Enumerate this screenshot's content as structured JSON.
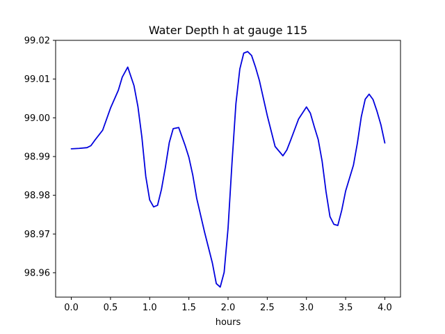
{
  "chart_data": {
    "type": "line",
    "title": "Water Depth h at gauge 115",
    "xlabel": "hours",
    "ylabel": "",
    "xlim": [
      -0.2,
      4.2
    ],
    "ylim": [
      98.9537,
      99.02
    ],
    "grid": false,
    "x_ticks": [
      0.0,
      0.5,
      1.0,
      1.5,
      2.0,
      2.5,
      3.0,
      3.5,
      4.0
    ],
    "x_tick_labels": [
      "0.0",
      "0.5",
      "1.0",
      "1.5",
      "2.0",
      "2.5",
      "3.0",
      "3.5",
      "4.0"
    ],
    "y_ticks": [
      98.96,
      98.97,
      98.98,
      98.99,
      99.0,
      99.01,
      99.02
    ],
    "y_tick_labels": [
      "98.96",
      "98.97",
      "98.98",
      "98.99",
      "99.00",
      "99.01",
      "99.02"
    ],
    "series": [
      {
        "color": "#0000dd",
        "x": [
          0.0,
          0.1,
          0.2,
          0.25,
          0.3,
          0.4,
          0.5,
          0.6,
          0.65,
          0.72,
          0.8,
          0.85,
          0.9,
          0.95,
          1.0,
          1.05,
          1.1,
          1.15,
          1.2,
          1.25,
          1.3,
          1.37,
          1.45,
          1.5,
          1.55,
          1.6,
          1.7,
          1.8,
          1.85,
          1.9,
          1.95,
          2.0,
          2.05,
          2.1,
          2.15,
          2.2,
          2.25,
          2.3,
          2.35,
          2.4,
          2.5,
          2.6,
          2.7,
          2.75,
          2.8,
          2.9,
          3.0,
          3.05,
          3.1,
          3.15,
          3.2,
          3.25,
          3.3,
          3.35,
          3.4,
          3.45,
          3.5,
          3.6,
          3.65,
          3.7,
          3.75,
          3.8,
          3.85,
          3.9,
          3.95,
          4.0
        ],
        "y": [
          98.992,
          98.9921,
          98.9923,
          98.9928,
          98.9942,
          98.9968,
          99.0025,
          99.0071,
          99.0105,
          99.0131,
          99.0083,
          99.0029,
          98.9951,
          98.9849,
          98.9788,
          98.977,
          98.9774,
          98.9815,
          98.9872,
          98.9936,
          98.9972,
          98.9975,
          98.993,
          98.9898,
          98.9852,
          98.9792,
          98.9705,
          98.9625,
          98.9572,
          98.9563,
          98.9601,
          98.9715,
          98.9883,
          99.0036,
          99.0126,
          99.0167,
          99.0171,
          99.0161,
          99.0131,
          99.0096,
          99.0006,
          98.9926,
          98.9902,
          98.9917,
          98.9943,
          98.9997,
          99.0028,
          99.0012,
          98.9977,
          98.9944,
          98.9888,
          98.9809,
          98.9745,
          98.9725,
          98.9722,
          98.9761,
          98.9811,
          98.9878,
          98.9935,
          99.0003,
          99.0048,
          99.0061,
          99.0047,
          99.0017,
          98.9982,
          98.9935
        ]
      }
    ]
  }
}
